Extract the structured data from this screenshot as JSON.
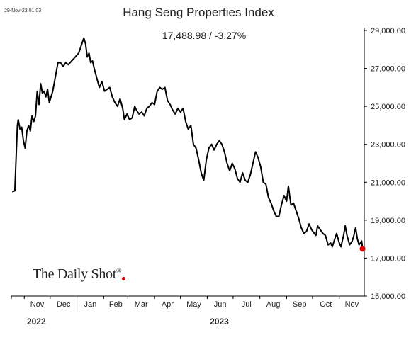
{
  "header": {
    "timestamp": "29-Nov-23 01:03",
    "brand": "The Daily Shot",
    "brand_mark": "®"
  },
  "colors": {
    "line": "#000000",
    "marker": "#e00000"
  },
  "chart_data": {
    "type": "line",
    "title": "Hang Seng Properties Index",
    "subtitle": "17,488.98  /  -3.27%",
    "y_axis": {
      "position": "right",
      "range": [
        15000,
        29000
      ],
      "ticks": [
        15000,
        17000,
        19000,
        21000,
        23000,
        25000,
        27000,
        29000
      ],
      "tick_labels": [
        "15,000.00",
        "17,000.00",
        "19,000.00",
        "21,000.00",
        "23,000.00",
        "25,000.00",
        "27,000.00",
        "29,000.00"
      ]
    },
    "x_axis": {
      "range": [
        "2022-10-17",
        "2023-11-30"
      ],
      "months": [
        {
          "date": "2022-11-01",
          "label": "Nov"
        },
        {
          "date": "2022-12-01",
          "label": "Dec"
        },
        {
          "date": "2023-01-01",
          "label": "Jan"
        },
        {
          "date": "2023-02-01",
          "label": "Feb"
        },
        {
          "date": "2023-03-01",
          "label": "Mar"
        },
        {
          "date": "2023-04-01",
          "label": "Apr"
        },
        {
          "date": "2023-05-01",
          "label": "May"
        },
        {
          "date": "2023-06-01",
          "label": "Jun"
        },
        {
          "date": "2023-07-01",
          "label": "Jul"
        },
        {
          "date": "2023-08-01",
          "label": "Aug"
        },
        {
          "date": "2023-09-01",
          "label": "Sep"
        },
        {
          "date": "2023-10-01",
          "label": "Oct"
        },
        {
          "date": "2023-11-01",
          "label": "Nov"
        }
      ],
      "years": [
        {
          "date": "2022-11-15",
          "label": "2022"
        },
        {
          "date": "2023-06-15",
          "label": "2023"
        }
      ],
      "year_separator": "2023-01-01"
    },
    "grid": false,
    "legend": "none",
    "series": [
      {
        "points": [
          [
            "2022-10-18",
            20500
          ],
          [
            "2022-10-21",
            20550
          ],
          [
            "2022-10-24",
            24000
          ],
          [
            "2022-10-25",
            24300
          ],
          [
            "2022-10-27",
            23800
          ],
          [
            "2022-10-29",
            23900
          ],
          [
            "2022-10-31",
            23200
          ],
          [
            "2022-11-02",
            22800
          ],
          [
            "2022-11-04",
            23700
          ],
          [
            "2022-11-06",
            24000
          ],
          [
            "2022-11-08",
            23700
          ],
          [
            "2022-11-10",
            24500
          ],
          [
            "2022-11-12",
            24200
          ],
          [
            "2022-11-14",
            24500
          ],
          [
            "2022-11-16",
            25800
          ],
          [
            "2022-11-18",
            25100
          ],
          [
            "2022-11-20",
            26200
          ],
          [
            "2022-11-22",
            25700
          ],
          [
            "2022-11-24",
            25800
          ],
          [
            "2022-11-26",
            25500
          ],
          [
            "2022-11-28",
            25900
          ],
          [
            "2022-11-30",
            25200
          ],
          [
            "2022-12-02",
            25500
          ],
          [
            "2022-12-04",
            25800
          ],
          [
            "2022-12-06",
            26300
          ],
          [
            "2022-12-08",
            26800
          ],
          [
            "2022-12-10",
            27300
          ],
          [
            "2022-12-13",
            27300
          ],
          [
            "2022-12-16",
            27100
          ],
          [
            "2022-12-19",
            27300
          ],
          [
            "2022-12-22",
            27200
          ],
          [
            "2022-12-26",
            27400
          ],
          [
            "2022-12-30",
            27600
          ],
          [
            "2023-01-03",
            27800
          ],
          [
            "2023-01-06",
            28200
          ],
          [
            "2023-01-09",
            28600
          ],
          [
            "2023-01-11",
            28300
          ],
          [
            "2023-01-13",
            27600
          ],
          [
            "2023-01-15",
            27800
          ],
          [
            "2023-01-17",
            27300
          ],
          [
            "2023-01-19",
            27400
          ],
          [
            "2023-01-21",
            27000
          ],
          [
            "2023-01-24",
            26500
          ],
          [
            "2023-01-27",
            26000
          ],
          [
            "2023-01-30",
            26300
          ],
          [
            "2023-02-02",
            25800
          ],
          [
            "2023-02-05",
            25900
          ],
          [
            "2023-02-08",
            26000
          ],
          [
            "2023-02-11",
            25500
          ],
          [
            "2023-02-14",
            25200
          ],
          [
            "2023-02-17",
            25000
          ],
          [
            "2023-02-20",
            25400
          ],
          [
            "2023-02-23",
            24900
          ],
          [
            "2023-02-25",
            24300
          ],
          [
            "2023-02-28",
            24600
          ],
          [
            "2023-03-03",
            24300
          ],
          [
            "2023-03-06",
            24400
          ],
          [
            "2023-03-09",
            25000
          ],
          [
            "2023-03-11",
            24800
          ],
          [
            "2023-03-14",
            24600
          ],
          [
            "2023-03-17",
            24700
          ],
          [
            "2023-03-20",
            24500
          ],
          [
            "2023-03-23",
            24900
          ],
          [
            "2023-03-26",
            25000
          ],
          [
            "2023-03-29",
            25200
          ],
          [
            "2023-04-01",
            25100
          ],
          [
            "2023-04-04",
            25800
          ],
          [
            "2023-04-07",
            26000
          ],
          [
            "2023-04-10",
            25900
          ],
          [
            "2023-04-13",
            26000
          ],
          [
            "2023-04-16",
            25300
          ],
          [
            "2023-04-19",
            25100
          ],
          [
            "2023-04-22",
            24800
          ],
          [
            "2023-04-25",
            24600
          ],
          [
            "2023-04-28",
            24900
          ],
          [
            "2023-05-01",
            24700
          ],
          [
            "2023-05-04",
            24900
          ],
          [
            "2023-05-07",
            24200
          ],
          [
            "2023-05-10",
            23800
          ],
          [
            "2023-05-13",
            24000
          ],
          [
            "2023-05-16",
            23000
          ],
          [
            "2023-05-19",
            22800
          ],
          [
            "2023-05-22",
            22200
          ],
          [
            "2023-05-25",
            21500
          ],
          [
            "2023-05-28",
            21100
          ],
          [
            "2023-05-31",
            22200
          ],
          [
            "2023-06-03",
            22800
          ],
          [
            "2023-06-06",
            23000
          ],
          [
            "2023-06-09",
            22700
          ],
          [
            "2023-06-12",
            23000
          ],
          [
            "2023-06-15",
            23200
          ],
          [
            "2023-06-18",
            23000
          ],
          [
            "2023-06-21",
            22600
          ],
          [
            "2023-06-24",
            22000
          ],
          [
            "2023-06-27",
            21600
          ],
          [
            "2023-06-30",
            22000
          ],
          [
            "2023-07-03",
            21700
          ],
          [
            "2023-07-06",
            21200
          ],
          [
            "2023-07-09",
            21000
          ],
          [
            "2023-07-12",
            21500
          ],
          [
            "2023-07-15",
            21100
          ],
          [
            "2023-07-18",
            21000
          ],
          [
            "2023-07-21",
            21400
          ],
          [
            "2023-07-24",
            22000
          ],
          [
            "2023-07-27",
            22600
          ],
          [
            "2023-07-30",
            22300
          ],
          [
            "2023-08-02",
            21800
          ],
          [
            "2023-08-05",
            21000
          ],
          [
            "2023-08-08",
            20900
          ],
          [
            "2023-08-11",
            20200
          ],
          [
            "2023-08-14",
            19900
          ],
          [
            "2023-08-17",
            19500
          ],
          [
            "2023-08-20",
            19200
          ],
          [
            "2023-08-23",
            19200
          ],
          [
            "2023-08-26",
            19800
          ],
          [
            "2023-08-29",
            20300
          ],
          [
            "2023-09-01",
            20000
          ],
          [
            "2023-09-03",
            20800
          ],
          [
            "2023-09-06",
            19800
          ],
          [
            "2023-09-09",
            19900
          ],
          [
            "2023-09-12",
            19500
          ],
          [
            "2023-09-15",
            19100
          ],
          [
            "2023-09-18",
            18600
          ],
          [
            "2023-09-21",
            18300
          ],
          [
            "2023-09-24",
            18400
          ],
          [
            "2023-09-27",
            18800
          ],
          [
            "2023-09-30",
            18500
          ],
          [
            "2023-10-03",
            18300
          ],
          [
            "2023-10-05",
            18200
          ],
          [
            "2023-10-07",
            18700
          ],
          [
            "2023-10-10",
            18500
          ],
          [
            "2023-10-13",
            18300
          ],
          [
            "2023-10-16",
            18200
          ],
          [
            "2023-10-19",
            17700
          ],
          [
            "2023-10-22",
            17800
          ],
          [
            "2023-10-24",
            17600
          ],
          [
            "2023-10-26",
            17900
          ],
          [
            "2023-10-29",
            18300
          ],
          [
            "2023-11-01",
            17800
          ],
          [
            "2023-11-03",
            17600
          ],
          [
            "2023-11-06",
            18200
          ],
          [
            "2023-11-08",
            18700
          ],
          [
            "2023-11-10",
            18200
          ],
          [
            "2023-11-13",
            17700
          ],
          [
            "2023-11-16",
            17900
          ],
          [
            "2023-11-18",
            18200
          ],
          [
            "2023-11-20",
            18600
          ],
          [
            "2023-11-22",
            18000
          ],
          [
            "2023-11-24",
            17700
          ],
          [
            "2023-11-27",
            17900
          ],
          [
            "2023-11-28",
            17489
          ]
        ]
      }
    ],
    "last_point_marker": true
  }
}
